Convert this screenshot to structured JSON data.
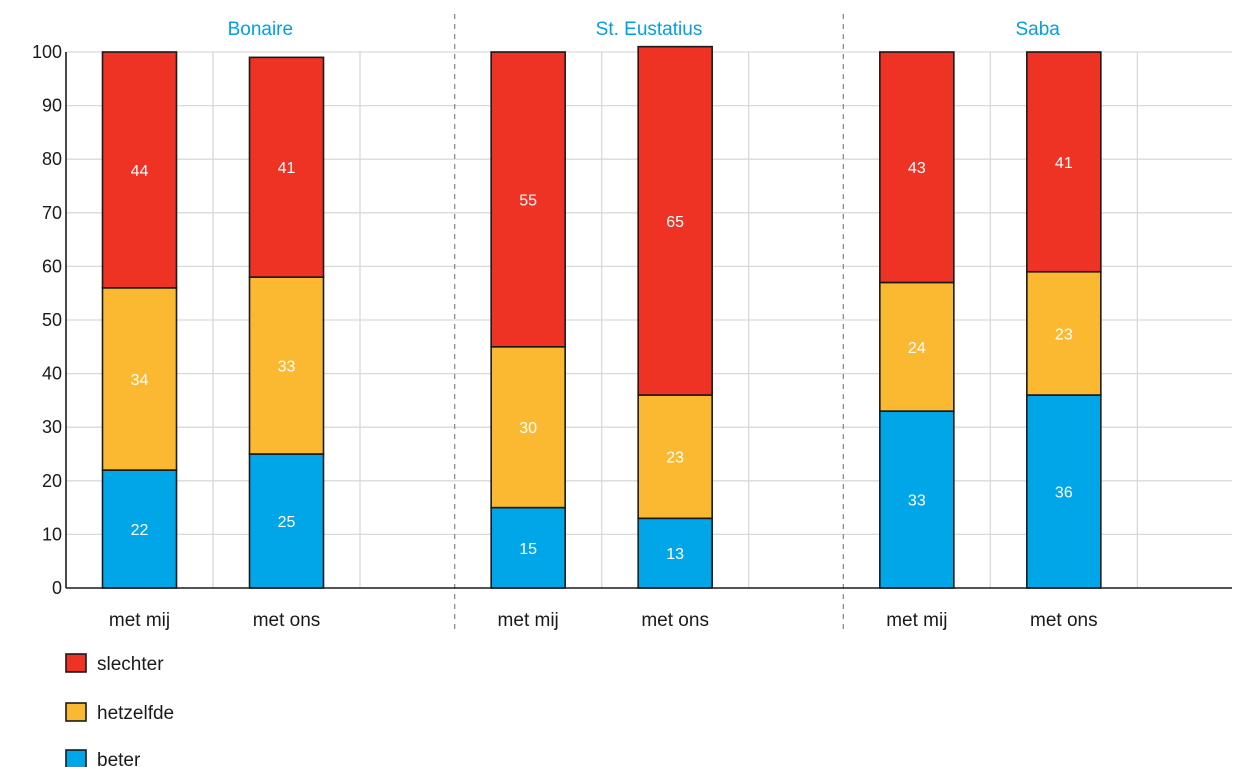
{
  "chart_data": {
    "type": "bar",
    "stacked": true,
    "ylim": [
      0,
      100
    ],
    "yticks": [
      0,
      10,
      20,
      30,
      40,
      50,
      60,
      70,
      80,
      90,
      100
    ],
    "grid": true,
    "legend_position": "bottom-left",
    "groups": [
      {
        "title": "Bonaire",
        "categories": [
          "met mij",
          "met ons"
        ],
        "series": [
          {
            "name": "beter",
            "values": [
              22,
              25
            ]
          },
          {
            "name": "hetzelfde",
            "values": [
              34,
              33
            ]
          },
          {
            "name": "slechter",
            "values": [
              44,
              41
            ]
          }
        ]
      },
      {
        "title": "St. Eustatius",
        "categories": [
          "met mij",
          "met ons"
        ],
        "series": [
          {
            "name": "beter",
            "values": [
              15,
              13
            ]
          },
          {
            "name": "hetzelfde",
            "values": [
              30,
              23
            ]
          },
          {
            "name": "slechter",
            "values": [
              55,
              65
            ]
          }
        ]
      },
      {
        "title": "Saba",
        "categories": [
          "met mij",
          "met ons"
        ],
        "series": [
          {
            "name": "beter",
            "values": [
              33,
              36
            ]
          },
          {
            "name": "hetzelfde",
            "values": [
              24,
              23
            ]
          },
          {
            "name": "slechter",
            "values": [
              43,
              41
            ]
          }
        ]
      }
    ],
    "legend": [
      {
        "name": "slechter",
        "color": "#ee3224"
      },
      {
        "name": "hetzelfde",
        "color": "#fbb931"
      },
      {
        "name": "beter",
        "color": "#00a6e8"
      }
    ],
    "colors": {
      "beter": "#00a6e8",
      "hetzelfde": "#fbb931",
      "slechter": "#ee3224",
      "group_title": "#00a0e3"
    }
  }
}
